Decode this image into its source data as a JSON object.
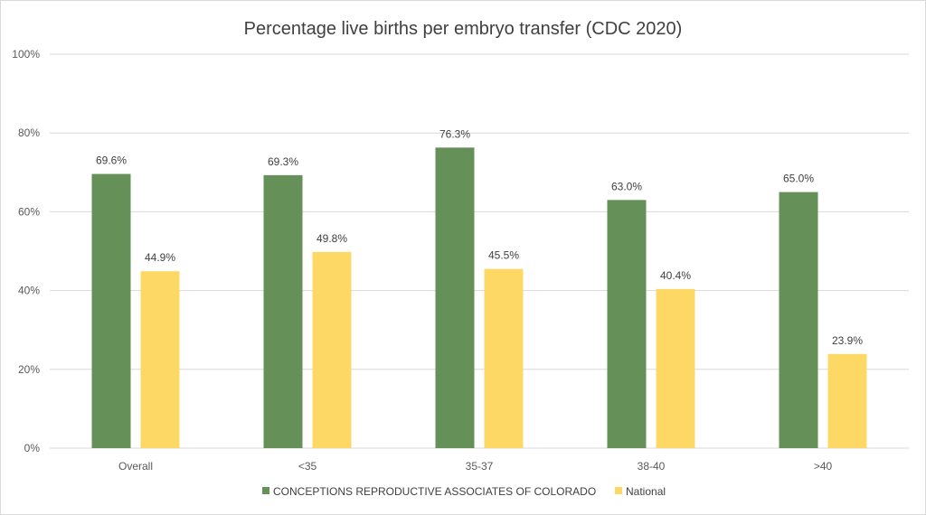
{
  "chart_data": {
    "type": "bar",
    "title": "Percentage live births per embryo transfer (CDC 2020)",
    "categories": [
      "Overall",
      "<35",
      "35-37",
      "38-40",
      ">40"
    ],
    "series": [
      {
        "name": "CONCEPTIONS REPRODUCTIVE ASSOCIATES OF COLORADO",
        "color": "#659159",
        "values": [
          69.6,
          69.3,
          76.3,
          63.0,
          65.0
        ],
        "labels": [
          "69.6%",
          "69.3%",
          "76.3%",
          "63.0%",
          "65.0%"
        ]
      },
      {
        "name": "National",
        "color": "#FDD865",
        "values": [
          44.9,
          49.8,
          45.5,
          40.4,
          23.9
        ],
        "labels": [
          "44.9%",
          "49.8%",
          "45.5%",
          "40.4%",
          "23.9%"
        ]
      }
    ],
    "ylim": [
      0,
      100
    ],
    "yticks": [
      "0%",
      "20%",
      "40%",
      "60%",
      "80%",
      "100%"
    ],
    "ytick_values": [
      0,
      20,
      40,
      60,
      80,
      100
    ],
    "grid": true,
    "legend": "bottom",
    "xlabel": "",
    "ylabel": ""
  }
}
